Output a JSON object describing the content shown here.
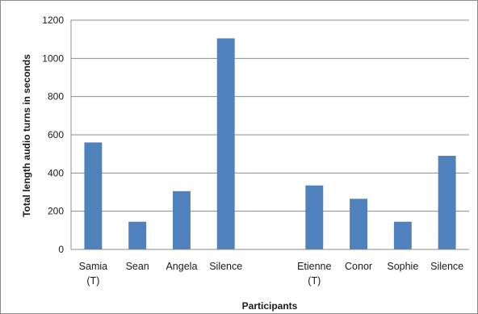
{
  "chart_data": {
    "type": "bar",
    "title": "",
    "xlabel": "Participants",
    "ylabel": "Total length audio  turns in seconds",
    "ylim": [
      0,
      1200
    ],
    "yticks": [
      0,
      200,
      400,
      600,
      800,
      1000,
      1200
    ],
    "grid": true,
    "legend": "none",
    "bar_color": "#4F81BD",
    "categories": [
      [
        "Samia",
        "(T)"
      ],
      [
        "Sean"
      ],
      [
        "Angela"
      ],
      [
        "Silence"
      ],
      [
        ""
      ],
      [
        "Etienne",
        "(T)"
      ],
      [
        "Conor"
      ],
      [
        "Sophie"
      ],
      [
        "Silence"
      ]
    ],
    "values": [
      560,
      145,
      305,
      1105,
      null,
      335,
      265,
      145,
      490
    ]
  }
}
